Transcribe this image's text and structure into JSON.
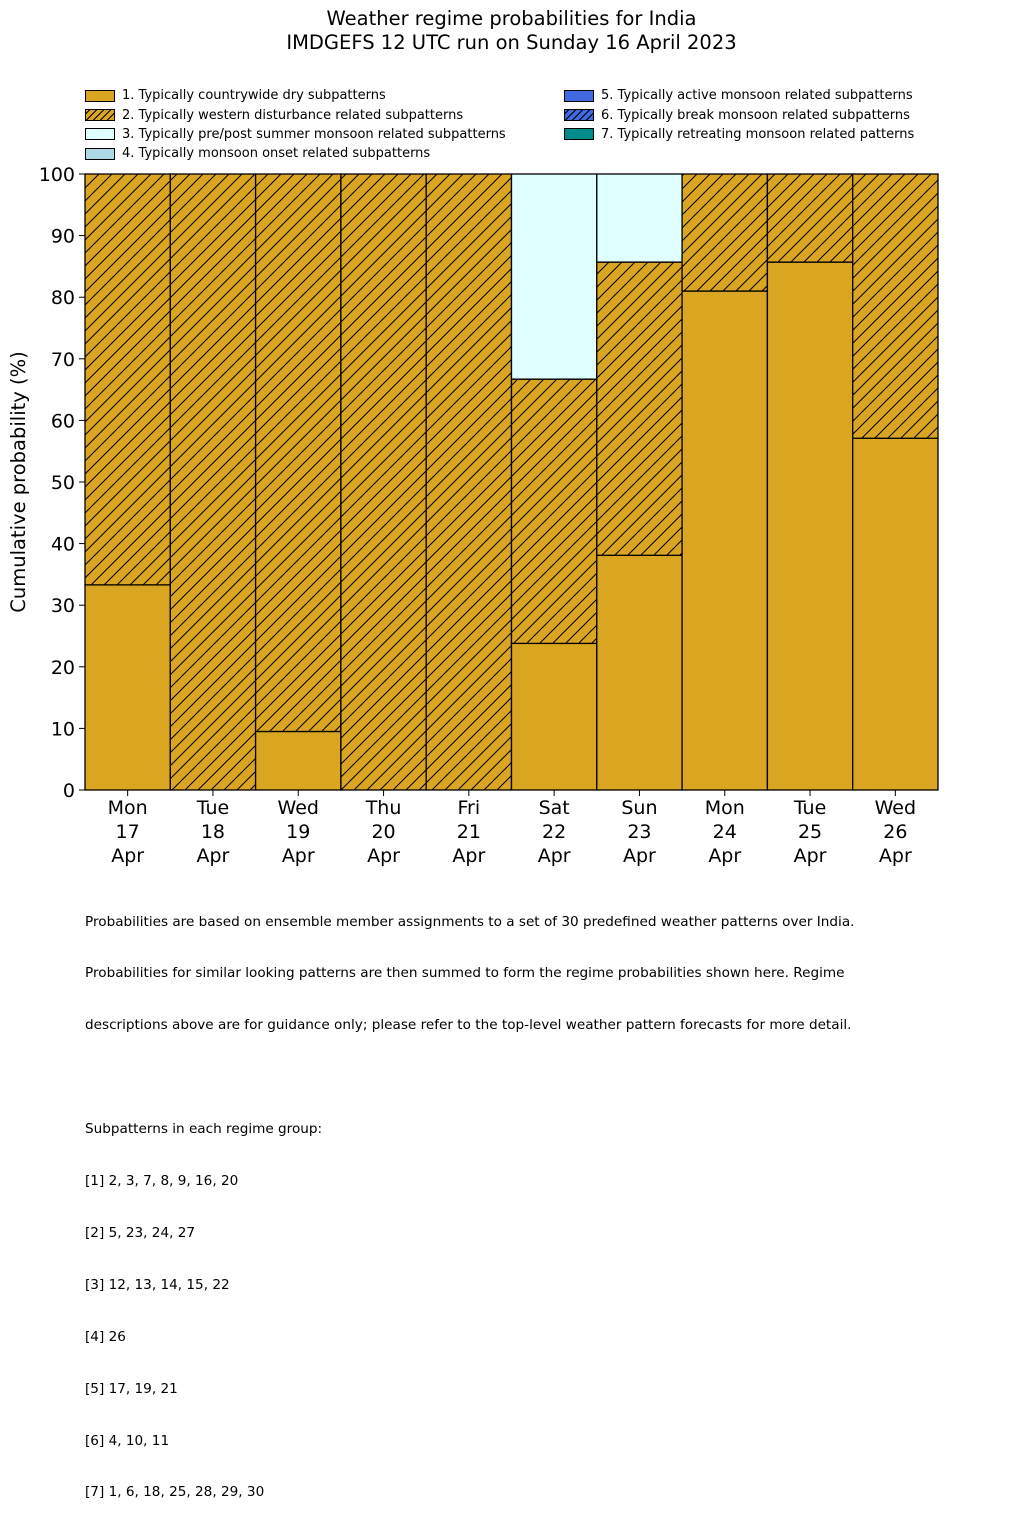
{
  "title": "Weather regime probabilities for India",
  "subtitle": "IMDGEFS 12 UTC run on Sunday 16 April 2023",
  "colors": {
    "r1": "#DAA520",
    "r2": "#DAA520",
    "r3": "#E0FFFF",
    "r4": "#ADD8E6",
    "r5": "#4169E1",
    "r6": "#4169E1",
    "r7": "#008B8B"
  },
  "legend": {
    "left": [
      {
        "label": "1. Typically countrywide dry subpatterns",
        "color": "#DAA520",
        "hatch": false
      },
      {
        "label": "2. Typically western disturbance related subpatterns",
        "color": "#DAA520",
        "hatch": true
      },
      {
        "label": "3. Typically pre/post summer monsoon related subpatterns",
        "color": "#E0FFFF",
        "hatch": false
      },
      {
        "label": "4. Typically monsoon onset related subpatterns",
        "color": "#ADD8E6",
        "hatch": false
      }
    ],
    "right": [
      {
        "label": "5. Typically active monsoon related subpatterns",
        "color": "#4169E1",
        "hatch": false
      },
      {
        "label": "6. Typically break monsoon related subpatterns",
        "color": "#4169E1",
        "hatch": true
      },
      {
        "label": "7. Typically retreating monsoon related patterns",
        "color": "#008B8B",
        "hatch": false
      }
    ]
  },
  "chart_data": {
    "type": "bar",
    "stacked": true,
    "ylabel": "Cumulative probability (%)",
    "xlabel": "",
    "ylim": [
      0,
      100
    ],
    "yticks": [
      0,
      10,
      20,
      30,
      40,
      50,
      60,
      70,
      80,
      90,
      100
    ],
    "categories": [
      [
        "Mon",
        "17",
        "Apr"
      ],
      [
        "Tue",
        "18",
        "Apr"
      ],
      [
        "Wed",
        "19",
        "Apr"
      ],
      [
        "Thu",
        "20",
        "Apr"
      ],
      [
        "Fri",
        "21",
        "Apr"
      ],
      [
        "Sat",
        "22",
        "Apr"
      ],
      [
        "Sun",
        "23",
        "Apr"
      ],
      [
        "Mon",
        "24",
        "Apr"
      ],
      [
        "Tue",
        "25",
        "Apr"
      ],
      [
        "Wed",
        "26",
        "Apr"
      ]
    ],
    "series": [
      {
        "name": "1. Typically countrywide dry subpatterns",
        "values": [
          33.3,
          0,
          9.5,
          0,
          0,
          23.8,
          38.1,
          81.0,
          85.7,
          57.1
        ]
      },
      {
        "name": "2. Typically western disturbance related subpatterns",
        "values": [
          66.7,
          100,
          90.5,
          100,
          100,
          42.9,
          47.6,
          19.0,
          14.3,
          42.9
        ]
      },
      {
        "name": "3. Typically pre/post summer monsoon related subpatterns",
        "values": [
          0,
          0,
          0,
          0,
          0,
          33.3,
          14.3,
          0,
          0,
          0
        ]
      },
      {
        "name": "4. Typically monsoon onset related subpatterns",
        "values": [
          0,
          0,
          0,
          0,
          0,
          0,
          0,
          0,
          0,
          0
        ]
      },
      {
        "name": "5. Typically active monsoon related subpatterns",
        "values": [
          0,
          0,
          0,
          0,
          0,
          0,
          0,
          0,
          0,
          0
        ]
      },
      {
        "name": "6. Typically break monsoon related subpatterns",
        "values": [
          0,
          0,
          0,
          0,
          0,
          0,
          0,
          0,
          0,
          0
        ]
      },
      {
        "name": "7. Typically retreating monsoon related patterns",
        "values": [
          0,
          0,
          0,
          0,
          0,
          0,
          0,
          0,
          0,
          0
        ]
      }
    ]
  },
  "notes": {
    "lines": [
      "Probabilities are based on ensemble member assignments to a set of 30 predefined weather patterns over India.",
      "Probabilities for similar looking patterns are then summed to form the regime probabilities shown here. Regime",
      "descriptions above are for guidance only; please refer to the top-level weather pattern forecasts for more detail.",
      "",
      "Subpatterns in each regime group:",
      "[1] 2, 3, 7, 8, 9, 16, 20",
      "[2] 5, 23, 24, 27",
      "[3] 12, 13, 14, 15, 22",
      "[4] 26",
      "[5] 17, 19, 21",
      "[6] 4, 10, 11",
      "[7] 1, 6, 18, 25, 28, 29, 30"
    ]
  }
}
